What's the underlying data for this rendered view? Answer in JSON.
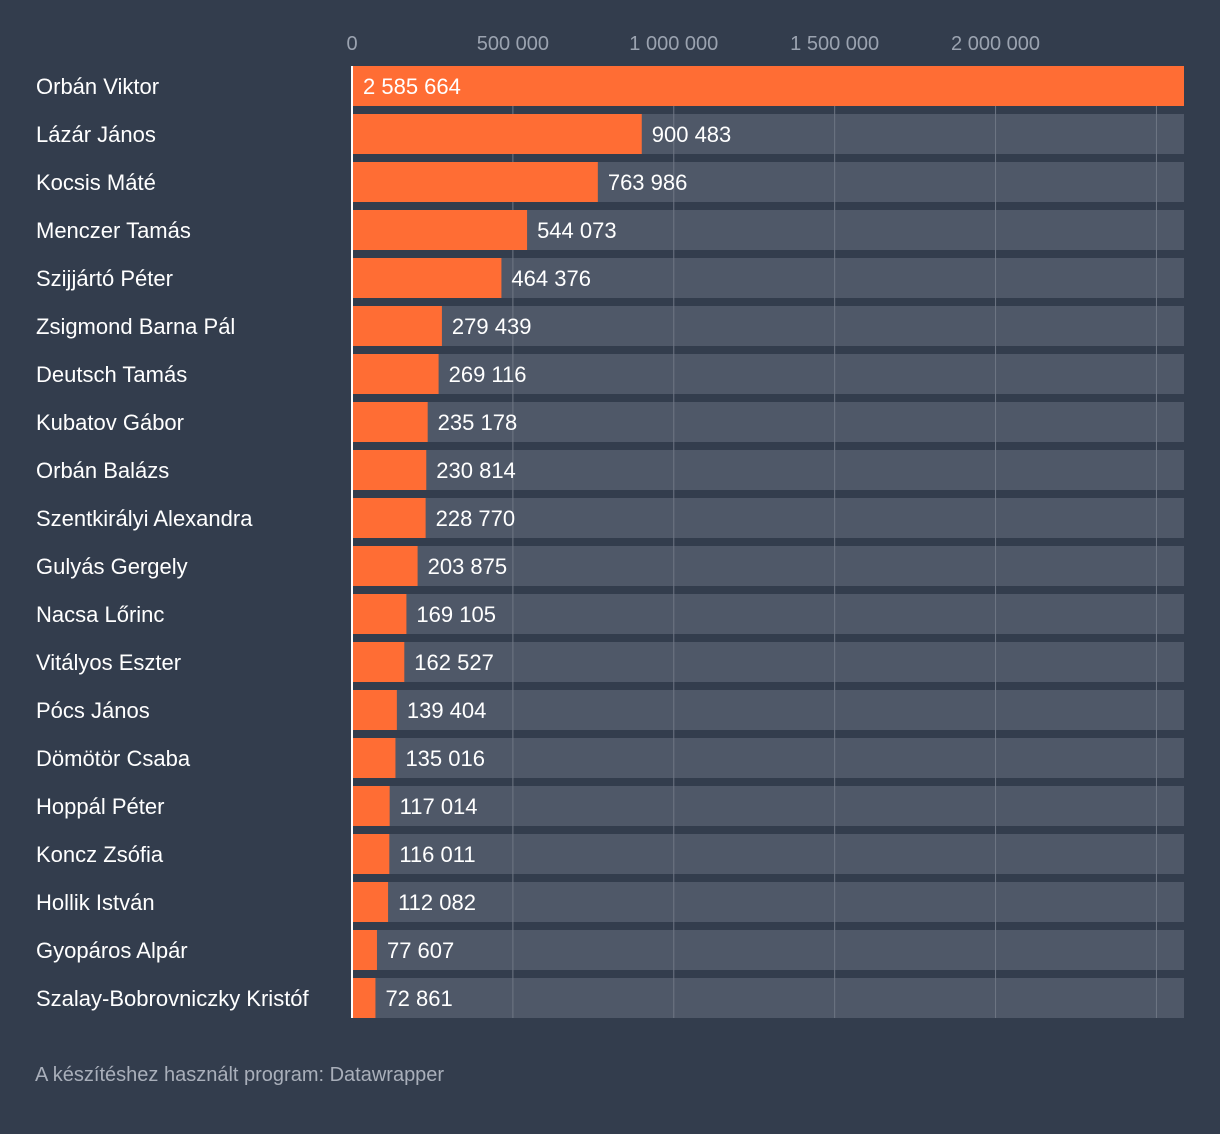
{
  "footer_text": "A készítéshez használt program: Datawrapper",
  "colors": {
    "background": "#333d4d",
    "bar": "#ff6d34",
    "track": "#4f5868",
    "grid": "#6e7684",
    "text": "#ffffff",
    "tick_text": "#9ba3b0",
    "footer_text": "#a9afba"
  },
  "chart_data": {
    "type": "bar",
    "orientation": "horizontal",
    "title": "",
    "xlabel": "",
    "ylabel": "",
    "xlim": [
      0,
      2585664
    ],
    "grid": true,
    "ticks": [
      {
        "value": 0,
        "label": "0"
      },
      {
        "value": 500000,
        "label": "500 000"
      },
      {
        "value": 1000000,
        "label": "1 000 000"
      },
      {
        "value": 1500000,
        "label": "1 500 000"
      },
      {
        "value": 2000000,
        "label": "2 000 000"
      },
      {
        "value": 2500000,
        "label": ""
      }
    ],
    "categories": [
      "Orbán Viktor",
      "Lázár János",
      "Kocsis Máté",
      "Menczer Tamás",
      "Szijjártó Péter",
      "Zsigmond Barna Pál",
      "Deutsch Tamás",
      "Kubatov Gábor",
      "Orbán Balázs",
      "Szentkirályi Alexandra",
      "Gulyás Gergely",
      "Nacsa Lőrinc",
      "Vitályos Eszter",
      "Pócs János",
      "Dömötör Csaba",
      "Hoppál Péter",
      "Koncz Zsófia",
      "Hollik István",
      "Gyopáros Alpár",
      "Szalay-Bobrovniczky Kristóf"
    ],
    "values": [
      2585664,
      900483,
      763986,
      544073,
      464376,
      279439,
      269116,
      235178,
      230814,
      228770,
      203875,
      169105,
      162527,
      139404,
      135016,
      117014,
      116011,
      112082,
      77607,
      72861
    ],
    "value_labels": [
      "2 585 664",
      "900 483",
      "763 986",
      "544 073",
      "464 376",
      "279 439",
      "269 116",
      "235 178",
      "230 814",
      "228 770",
      "203 875",
      "169 105",
      "162 527",
      "139 404",
      "135 016",
      "117 014",
      "116 011",
      "112 082",
      "77 607",
      "72 861"
    ]
  }
}
